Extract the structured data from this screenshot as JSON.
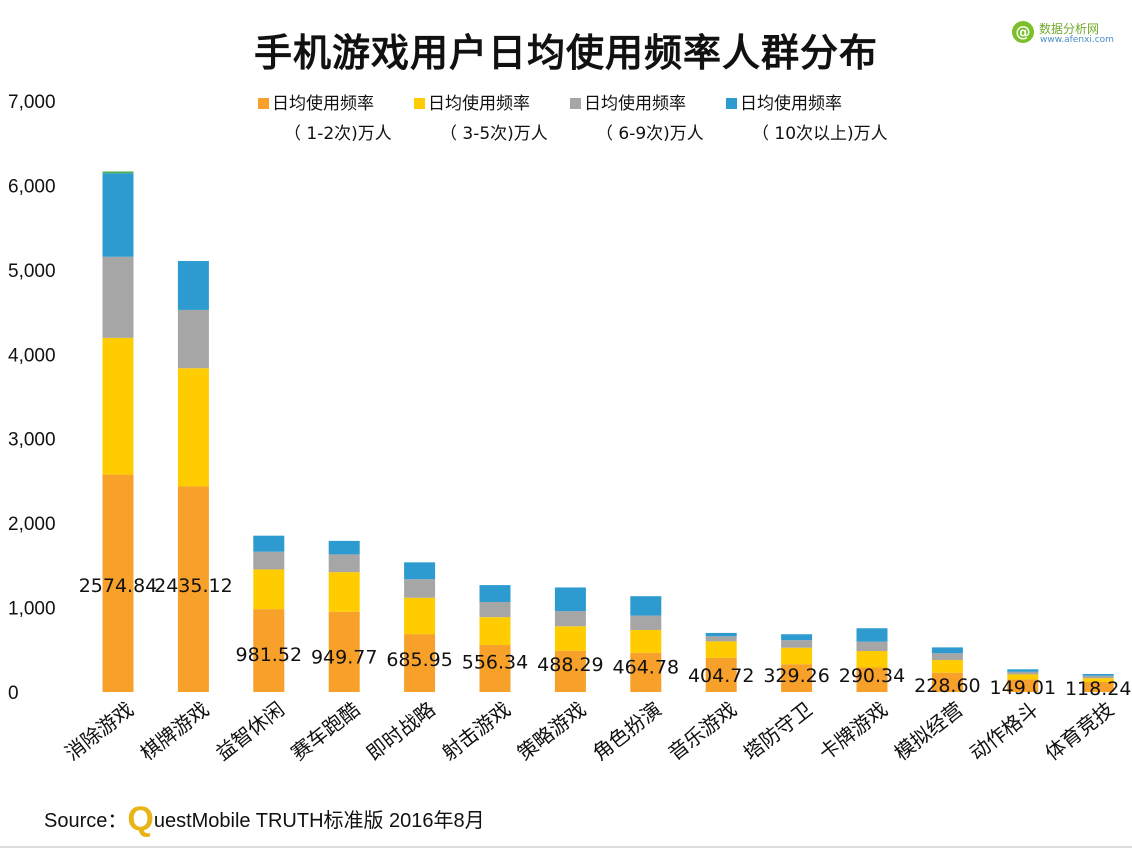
{
  "logo": {
    "glyph": "@",
    "name": "数据分析网",
    "url": "www.afenxi.com"
  },
  "source": {
    "prefix": "Source：",
    "brand_letter": "Q",
    "text": "uestMobile TRUTH标准版 2016年8月"
  },
  "chart_data": {
    "type": "bar",
    "stacked": true,
    "title": "手机游戏用户日均使用频率人群分布",
    "xlabel": "",
    "ylabel": "",
    "ylim": [
      0,
      7000
    ],
    "yticks": [
      "0",
      "1,000",
      "2,000",
      "3,000",
      "4,000",
      "5,000",
      "6,000",
      "7,000"
    ],
    "ytick_values": [
      0,
      1000,
      2000,
      3000,
      4000,
      5000,
      6000,
      7000
    ],
    "grid": false,
    "legend_position": "top",
    "categories": [
      "消除游戏",
      "棋牌游戏",
      "益智休闲",
      "赛车跑酷",
      "即时战略",
      "射击游戏",
      "策略游戏",
      "角色扮演",
      "音乐游戏",
      "塔防守卫",
      "卡牌游戏",
      "模拟经营",
      "动作格斗",
      "体育竞技"
    ],
    "series": [
      {
        "name_line1": "日均使用频率",
        "name_line2": "（ 1-2次)万人",
        "color": "#f7a02a",
        "values": [
          2574.84,
          2435.12,
          981.52,
          949.77,
          685.95,
          556.34,
          488.29,
          464.78,
          404.72,
          329.26,
          290.34,
          228.6,
          149.01,
          118.24
        ],
        "labels": [
          "2574.84",
          "2435.12",
          "981.52",
          "949.77",
          "685.95",
          "556.34",
          "488.29",
          "464.78",
          "404.72",
          "329.26",
          "290.34",
          "228.60",
          "149.01",
          "118.24"
        ]
      },
      {
        "name_line1": "日均使用频率",
        "name_line2": "（ 3-5次)万人",
        "color": "#ffcc00",
        "values": [
          1620,
          1400,
          470,
          470,
          430,
          330,
          290,
          270,
          195,
          195,
          195,
          150,
          60,
          45
        ]
      },
      {
        "name_line1": "日均使用频率",
        "name_line2": "（ 6-9次)万人",
        "color": "#a6a6a6",
        "values": [
          960,
          690,
          210,
          210,
          220,
          180,
          180,
          170,
          60,
          90,
          110,
          80,
          30,
          30
        ]
      },
      {
        "name_line1": "日均使用频率",
        "name_line2": "（ 10次以上)万人",
        "color": "#2e9bd0",
        "values": [
          990,
          580,
          190,
          160,
          200,
          200,
          280,
          230,
          40,
          70,
          160,
          70,
          30,
          20
        ]
      }
    ],
    "extra_top_segment": {
      "color": "#4caf50",
      "values": [
        20,
        0,
        0,
        0,
        0,
        0,
        0,
        0,
        0,
        0,
        0,
        0,
        0,
        0
      ]
    }
  }
}
